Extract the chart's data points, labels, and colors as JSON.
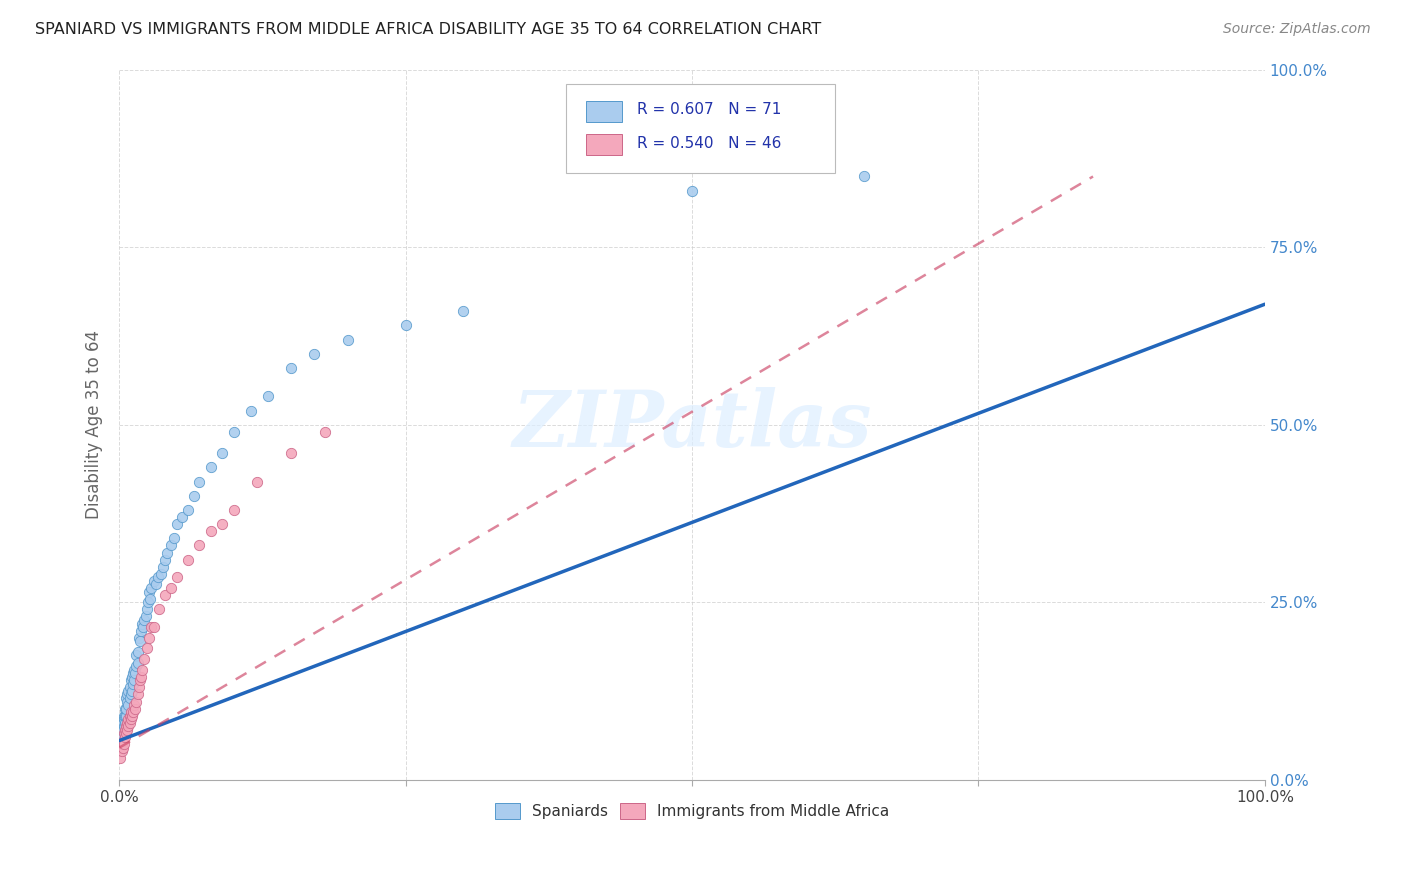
{
  "title": "SPANIARD VS IMMIGRANTS FROM MIDDLE AFRICA DISABILITY AGE 35 TO 64 CORRELATION CHART",
  "source": "Source: ZipAtlas.com",
  "ylabel": "Disability Age 35 to 64",
  "xlim": [
    0,
    1
  ],
  "ylim": [
    0,
    1
  ],
  "background_color": "#ffffff",
  "grid_color": "#cccccc",
  "watermark": "ZIPatlas",
  "spaniards_color": "#aaccee",
  "immigrants_color": "#f4a8bc",
  "spaniards_edge_color": "#5599cc",
  "immigrants_edge_color": "#cc6688",
  "spaniards_line_color": "#2266bb",
  "immigrants_line_color": "#cc4466",
  "legend_text_color": "#2233aa",
  "spaniards_x": [
    0.001,
    0.002,
    0.002,
    0.003,
    0.003,
    0.003,
    0.004,
    0.004,
    0.004,
    0.005,
    0.005,
    0.005,
    0.006,
    0.006,
    0.006,
    0.007,
    0.007,
    0.008,
    0.008,
    0.009,
    0.009,
    0.01,
    0.01,
    0.011,
    0.011,
    0.012,
    0.012,
    0.013,
    0.013,
    0.014,
    0.015,
    0.015,
    0.016,
    0.016,
    0.017,
    0.018,
    0.019,
    0.02,
    0.021,
    0.022,
    0.023,
    0.024,
    0.025,
    0.026,
    0.027,
    0.028,
    0.03,
    0.032,
    0.034,
    0.036,
    0.038,
    0.04,
    0.042,
    0.045,
    0.048,
    0.05,
    0.055,
    0.06,
    0.065,
    0.07,
    0.08,
    0.09,
    0.1,
    0.115,
    0.13,
    0.15,
    0.17,
    0.2,
    0.25,
    0.3,
    0.5,
    0.65
  ],
  "spaniards_y": [
    0.04,
    0.055,
    0.065,
    0.06,
    0.07,
    0.08,
    0.075,
    0.085,
    0.09,
    0.08,
    0.09,
    0.1,
    0.09,
    0.1,
    0.115,
    0.11,
    0.12,
    0.105,
    0.125,
    0.115,
    0.13,
    0.12,
    0.14,
    0.125,
    0.145,
    0.135,
    0.15,
    0.14,
    0.155,
    0.15,
    0.16,
    0.175,
    0.165,
    0.18,
    0.2,
    0.195,
    0.21,
    0.22,
    0.215,
    0.225,
    0.23,
    0.24,
    0.25,
    0.265,
    0.255,
    0.27,
    0.28,
    0.275,
    0.285,
    0.29,
    0.3,
    0.31,
    0.32,
    0.33,
    0.34,
    0.36,
    0.37,
    0.38,
    0.4,
    0.42,
    0.44,
    0.46,
    0.49,
    0.52,
    0.54,
    0.58,
    0.6,
    0.62,
    0.64,
    0.66,
    0.83,
    0.85
  ],
  "immigrants_x": [
    0.001,
    0.002,
    0.002,
    0.003,
    0.003,
    0.004,
    0.004,
    0.005,
    0.005,
    0.006,
    0.006,
    0.007,
    0.007,
    0.008,
    0.008,
    0.009,
    0.009,
    0.01,
    0.01,
    0.011,
    0.012,
    0.013,
    0.014,
    0.015,
    0.016,
    0.017,
    0.018,
    0.019,
    0.02,
    0.022,
    0.024,
    0.026,
    0.028,
    0.03,
    0.035,
    0.04,
    0.045,
    0.05,
    0.06,
    0.07,
    0.08,
    0.09,
    0.1,
    0.12,
    0.15,
    0.18
  ],
  "immigrants_y": [
    0.03,
    0.04,
    0.05,
    0.045,
    0.055,
    0.05,
    0.065,
    0.06,
    0.07,
    0.065,
    0.075,
    0.07,
    0.08,
    0.075,
    0.085,
    0.08,
    0.09,
    0.085,
    0.095,
    0.09,
    0.095,
    0.105,
    0.1,
    0.11,
    0.12,
    0.13,
    0.14,
    0.145,
    0.155,
    0.17,
    0.185,
    0.2,
    0.215,
    0.215,
    0.24,
    0.26,
    0.27,
    0.285,
    0.31,
    0.33,
    0.35,
    0.36,
    0.38,
    0.42,
    0.46,
    0.49
  ],
  "spaniard_line_x0": 0.0,
  "spaniard_line_y0": 0.055,
  "spaniard_line_x1": 1.0,
  "spaniard_line_y1": 0.67,
  "immigrant_line_x0": 0.0,
  "immigrant_line_y0": 0.045,
  "immigrant_line_x1": 0.85,
  "immigrant_line_y1": 0.85
}
